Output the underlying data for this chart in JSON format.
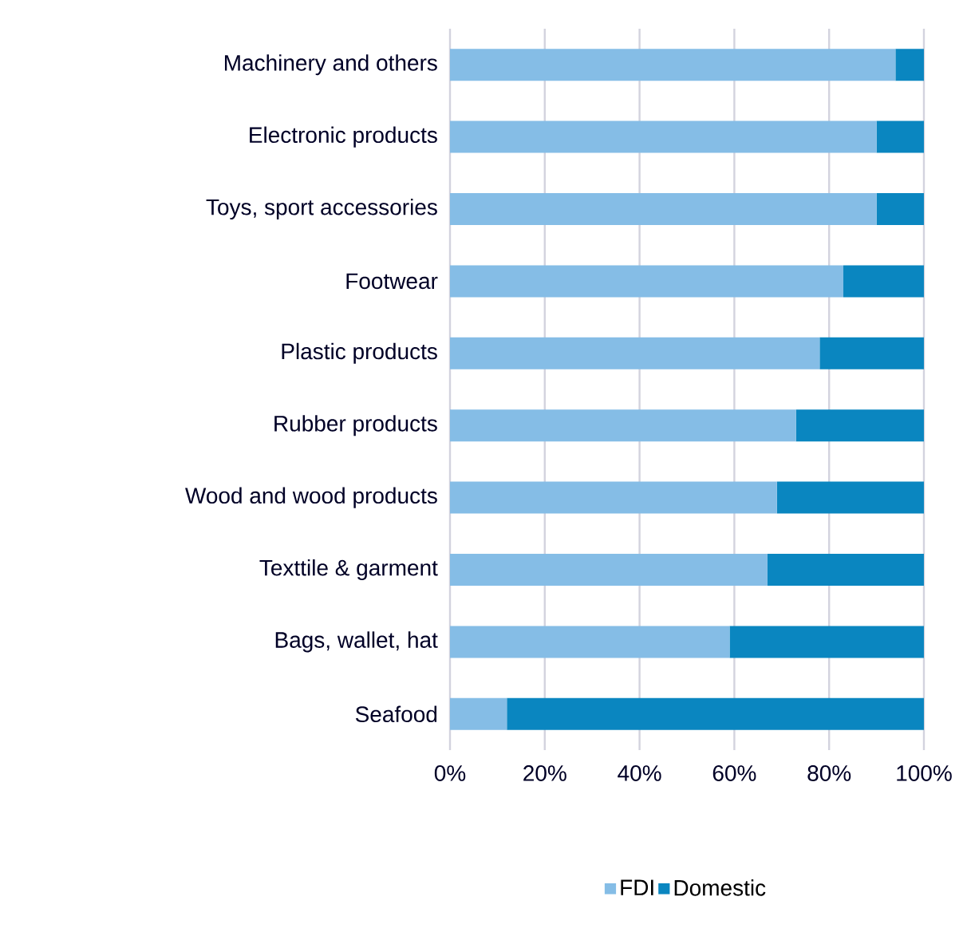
{
  "chart_data": {
    "type": "bar",
    "orientation": "horizontal",
    "stacked": true,
    "categories": [
      "Machinery and others",
      "Electronic products",
      "Toys, sport accessories",
      "Footwear",
      "Plastic products",
      "Rubber products",
      "Wood and wood products",
      "Texttile & garment",
      "Bags, wallet, hat",
      "Seafood"
    ],
    "series": [
      {
        "name": "FDI",
        "color": "#85bde6",
        "values": [
          94,
          90,
          90,
          83,
          78,
          73,
          69,
          67,
          59,
          12
        ]
      },
      {
        "name": "Domestic",
        "color": "#0a86c0",
        "values": [
          6,
          10,
          10,
          17,
          22,
          27,
          31,
          33,
          41,
          88
        ]
      }
    ],
    "xlim": [
      0,
      100
    ],
    "xticks": [
      {
        "value": 0,
        "label": "0%"
      },
      {
        "value": 20,
        "label": "20%"
      },
      {
        "value": 40,
        "label": "40%"
      },
      {
        "value": 60,
        "label": "60%"
      },
      {
        "value": 80,
        "label": "80%"
      },
      {
        "value": 100,
        "label": "100%"
      }
    ],
    "grid": "x",
    "legend": "bottom"
  }
}
